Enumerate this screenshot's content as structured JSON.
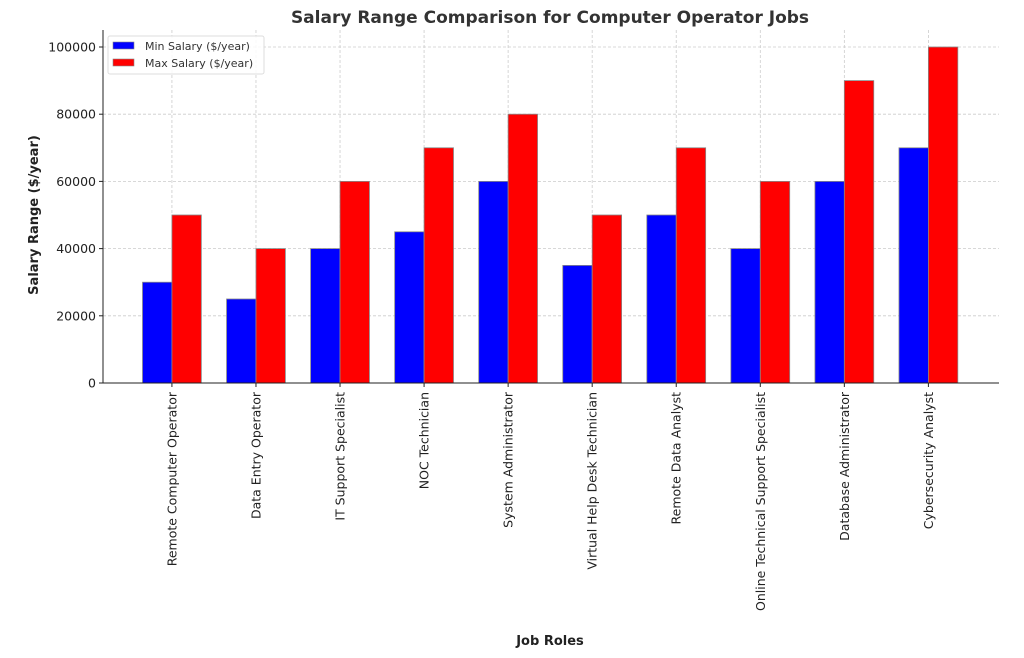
{
  "chart_data": {
    "type": "bar",
    "title": "Salary Range Comparison for Computer Operator Jobs",
    "xlabel": "Job Roles",
    "ylabel": "Salary Range ($/year)",
    "ylim": [
      0,
      105000
    ],
    "yticks": [
      0,
      20000,
      40000,
      60000,
      80000,
      100000
    ],
    "ytick_labels": [
      "0",
      "20000",
      "40000",
      "60000",
      "80000",
      "100000"
    ],
    "grid": true,
    "legend_position": "top-left",
    "categories": [
      "Remote Computer Operator",
      "Data Entry Operator",
      "IT Support Specialist",
      "NOC Technician",
      "System Administrator",
      "Virtual Help Desk Technician",
      "Remote Data Analyst",
      "Online Technical Support Specialist",
      "Database Administrator",
      "Cybersecurity Analyst"
    ],
    "series": [
      {
        "name": "Min Salary ($/year)",
        "color": "#0000ff",
        "values": [
          30000,
          25000,
          40000,
          45000,
          60000,
          35000,
          50000,
          40000,
          60000,
          70000
        ]
      },
      {
        "name": "Max Salary ($/year)",
        "color": "#ff0000",
        "values": [
          50000,
          40000,
          60000,
          70000,
          80000,
          50000,
          70000,
          60000,
          90000,
          100000
        ]
      }
    ]
  }
}
